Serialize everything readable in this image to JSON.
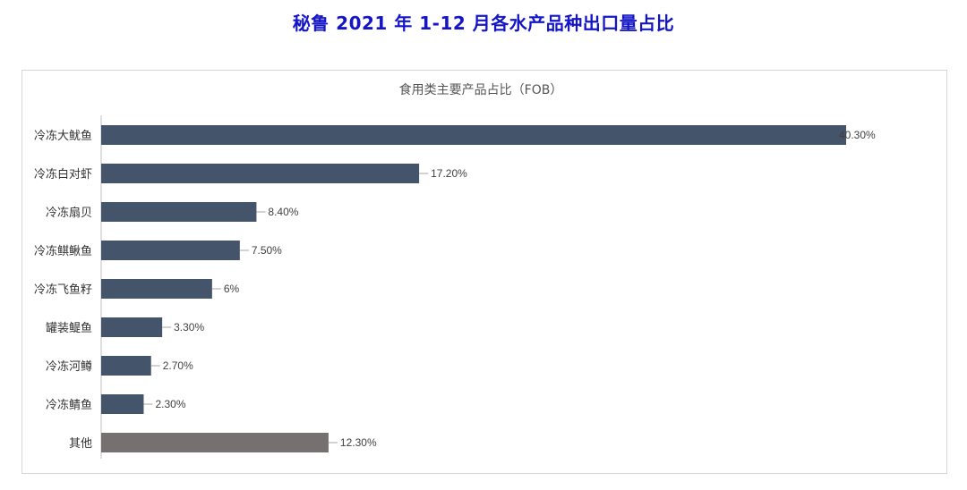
{
  "page": {
    "title": "秘鲁 2021 年 1-12 月各水产品种出口量占比"
  },
  "colors": {
    "title": "#1515c8",
    "bar_main": "#44546a",
    "bar_other": "#767171",
    "axis": "#bfbfbf",
    "leader": "#a6a6a6"
  },
  "chart_data": {
    "type": "bar",
    "orientation": "horizontal",
    "title": "食用类主要产品占比（FOB）",
    "xlabel": "",
    "ylabel": "",
    "xlim": [
      0,
      40.3
    ],
    "grid": false,
    "legend": "none",
    "categories": [
      "冷冻大鱿鱼",
      "冷冻白对虾",
      "冷冻扇贝",
      "冷冻鲯鳅鱼",
      "冷冻飞鱼籽",
      "罐装鳀鱼",
      "冷冻河鳟",
      "冷冻鲭鱼",
      "其他"
    ],
    "values": [
      40.3,
      17.2,
      8.4,
      7.5,
      6,
      3.3,
      2.7,
      2.3,
      12.3
    ],
    "value_labels": [
      "40.30%",
      "17.20%",
      "8.40%",
      "7.50%",
      "6%",
      "3.30%",
      "2.70%",
      "2.30%",
      "12.30%"
    ],
    "bar_colors": [
      "#44546a",
      "#44546a",
      "#44546a",
      "#44546a",
      "#44546a",
      "#44546a",
      "#44546a",
      "#44546a",
      "#767171"
    ]
  }
}
